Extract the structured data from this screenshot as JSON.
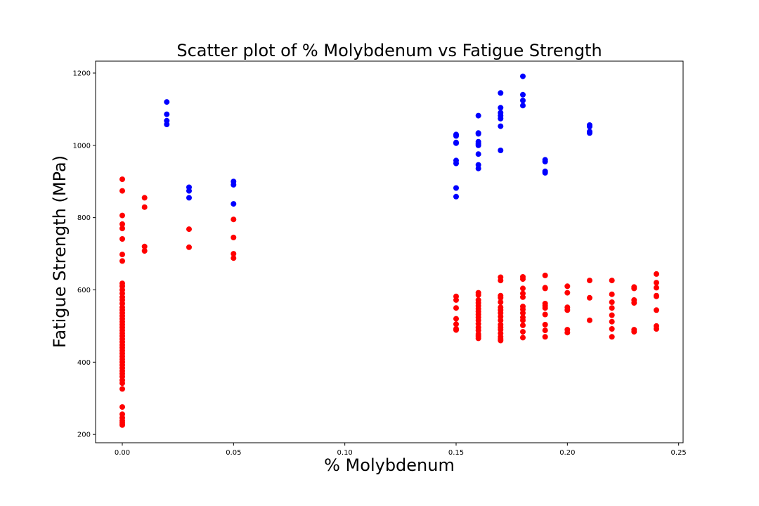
{
  "chart_data": {
    "type": "scatter",
    "title": "Scatter plot of % Molybdenum vs Fatigue Strength",
    "xlabel": "% Molybdenum",
    "ylabel": "Fatigue Strength (MPa)",
    "xlim": [
      -0.012,
      0.252
    ],
    "ylim": [
      177,
      1233
    ],
    "xticks": [
      0.0,
      0.05,
      0.1,
      0.15,
      0.2,
      0.25
    ],
    "xtick_labels": [
      "0.00",
      "0.05",
      "0.10",
      "0.15",
      "0.20",
      "0.25"
    ],
    "yticks": [
      200,
      400,
      600,
      800,
      1000,
      1200
    ],
    "ytick_labels": [
      "200",
      "400",
      "600",
      "800",
      "1000",
      "1200"
    ],
    "grid": false,
    "legend": "none",
    "series": [
      {
        "color": "#0000ff",
        "points": [
          [
            0.02,
            1120
          ],
          [
            0.02,
            1086
          ],
          [
            0.02,
            1068
          ],
          [
            0.02,
            1058
          ],
          [
            0.03,
            884
          ],
          [
            0.03,
            874
          ],
          [
            0.03,
            855
          ],
          [
            0.05,
            900
          ],
          [
            0.05,
            891
          ],
          [
            0.05,
            838
          ],
          [
            0.15,
            1030
          ],
          [
            0.15,
            1026
          ],
          [
            0.15,
            1008
          ],
          [
            0.15,
            1006
          ],
          [
            0.15,
            958
          ],
          [
            0.15,
            950
          ],
          [
            0.15,
            882
          ],
          [
            0.15,
            858
          ],
          [
            0.16,
            1082
          ],
          [
            0.16,
            1034
          ],
          [
            0.16,
            1032
          ],
          [
            0.16,
            1010
          ],
          [
            0.16,
            1004
          ],
          [
            0.16,
            1000
          ],
          [
            0.16,
            976
          ],
          [
            0.16,
            946
          ],
          [
            0.16,
            936
          ],
          [
            0.17,
            1145
          ],
          [
            0.17,
            1104
          ],
          [
            0.17,
            1090
          ],
          [
            0.17,
            1082
          ],
          [
            0.17,
            1074
          ],
          [
            0.17,
            1053
          ],
          [
            0.17,
            986
          ],
          [
            0.18,
            1191
          ],
          [
            0.18,
            1140
          ],
          [
            0.18,
            1124
          ],
          [
            0.18,
            1110
          ],
          [
            0.19,
            960
          ],
          [
            0.19,
            955
          ],
          [
            0.19,
            928
          ],
          [
            0.19,
            924
          ],
          [
            0.21,
            1056
          ],
          [
            0.21,
            1052
          ],
          [
            0.21,
            1038
          ],
          [
            0.21,
            1034
          ]
        ]
      },
      {
        "color": "#ff0000",
        "points": [
          [
            0.0,
            906
          ],
          [
            0.0,
            874
          ],
          [
            0.0,
            806
          ],
          [
            0.0,
            782
          ],
          [
            0.0,
            770
          ],
          [
            0.0,
            741
          ],
          [
            0.0,
            698
          ],
          [
            0.0,
            680
          ],
          [
            0.0,
            618
          ],
          [
            0.0,
            610
          ],
          [
            0.0,
            600
          ],
          [
            0.0,
            590
          ],
          [
            0.0,
            580
          ],
          [
            0.0,
            572
          ],
          [
            0.0,
            562
          ],
          [
            0.0,
            552
          ],
          [
            0.0,
            544
          ],
          [
            0.0,
            536
          ],
          [
            0.0,
            528
          ],
          [
            0.0,
            520
          ],
          [
            0.0,
            512
          ],
          [
            0.0,
            504
          ],
          [
            0.0,
            496
          ],
          [
            0.0,
            488
          ],
          [
            0.0,
            480
          ],
          [
            0.0,
            472
          ],
          [
            0.0,
            464
          ],
          [
            0.0,
            456
          ],
          [
            0.0,
            448
          ],
          [
            0.0,
            440
          ],
          [
            0.0,
            432
          ],
          [
            0.0,
            424
          ],
          [
            0.0,
            416
          ],
          [
            0.0,
            408
          ],
          [
            0.0,
            400
          ],
          [
            0.0,
            392
          ],
          [
            0.0,
            384
          ],
          [
            0.0,
            376
          ],
          [
            0.0,
            368
          ],
          [
            0.0,
            360
          ],
          [
            0.0,
            350
          ],
          [
            0.0,
            342
          ],
          [
            0.0,
            326
          ],
          [
            0.0,
            276
          ],
          [
            0.0,
            256
          ],
          [
            0.0,
            246
          ],
          [
            0.0,
            238
          ],
          [
            0.0,
            232
          ],
          [
            0.0,
            226
          ],
          [
            0.01,
            855
          ],
          [
            0.01,
            829
          ],
          [
            0.01,
            720
          ],
          [
            0.01,
            708
          ],
          [
            0.03,
            768
          ],
          [
            0.03,
            718
          ],
          [
            0.05,
            795
          ],
          [
            0.05,
            745
          ],
          [
            0.05,
            700
          ],
          [
            0.05,
            688
          ],
          [
            0.15,
            582
          ],
          [
            0.15,
            572
          ],
          [
            0.15,
            550
          ],
          [
            0.15,
            520
          ],
          [
            0.15,
            505
          ],
          [
            0.15,
            492
          ],
          [
            0.15,
            489
          ],
          [
            0.16,
            592
          ],
          [
            0.16,
            586
          ],
          [
            0.16,
            572
          ],
          [
            0.16,
            564
          ],
          [
            0.16,
            556
          ],
          [
            0.16,
            548
          ],
          [
            0.16,
            540
          ],
          [
            0.16,
            532
          ],
          [
            0.16,
            524
          ],
          [
            0.16,
            516
          ],
          [
            0.16,
            506
          ],
          [
            0.16,
            496
          ],
          [
            0.16,
            488
          ],
          [
            0.16,
            478
          ],
          [
            0.16,
            472
          ],
          [
            0.16,
            466
          ],
          [
            0.17,
            635
          ],
          [
            0.17,
            626
          ],
          [
            0.17,
            584
          ],
          [
            0.17,
            578
          ],
          [
            0.17,
            566
          ],
          [
            0.17,
            552
          ],
          [
            0.17,
            544
          ],
          [
            0.17,
            536
          ],
          [
            0.17,
            526
          ],
          [
            0.17,
            516
          ],
          [
            0.17,
            504
          ],
          [
            0.17,
            496
          ],
          [
            0.17,
            490
          ],
          [
            0.17,
            480
          ],
          [
            0.17,
            470
          ],
          [
            0.17,
            464
          ],
          [
            0.17,
            460
          ],
          [
            0.18,
            636
          ],
          [
            0.18,
            630
          ],
          [
            0.18,
            604
          ],
          [
            0.18,
            590
          ],
          [
            0.18,
            580
          ],
          [
            0.18,
            554
          ],
          [
            0.18,
            546
          ],
          [
            0.18,
            536
          ],
          [
            0.18,
            524
          ],
          [
            0.18,
            516
          ],
          [
            0.18,
            502
          ],
          [
            0.18,
            484
          ],
          [
            0.18,
            468
          ],
          [
            0.19,
            640
          ],
          [
            0.19,
            606
          ],
          [
            0.19,
            604
          ],
          [
            0.19,
            562
          ],
          [
            0.19,
            556
          ],
          [
            0.19,
            550
          ],
          [
            0.19,
            532
          ],
          [
            0.19,
            504
          ],
          [
            0.19,
            488
          ],
          [
            0.19,
            470
          ],
          [
            0.2,
            610
          ],
          [
            0.2,
            592
          ],
          [
            0.2,
            552
          ],
          [
            0.2,
            544
          ],
          [
            0.2,
            490
          ],
          [
            0.2,
            482
          ],
          [
            0.21,
            626
          ],
          [
            0.21,
            578
          ],
          [
            0.21,
            516
          ],
          [
            0.22,
            626
          ],
          [
            0.22,
            588
          ],
          [
            0.22,
            566
          ],
          [
            0.22,
            550
          ],
          [
            0.22,
            530
          ],
          [
            0.22,
            512
          ],
          [
            0.22,
            492
          ],
          [
            0.22,
            470
          ],
          [
            0.23,
            608
          ],
          [
            0.23,
            604
          ],
          [
            0.23,
            572
          ],
          [
            0.23,
            564
          ],
          [
            0.23,
            490
          ],
          [
            0.23,
            484
          ],
          [
            0.24,
            644
          ],
          [
            0.24,
            620
          ],
          [
            0.24,
            606
          ],
          [
            0.24,
            584
          ],
          [
            0.24,
            582
          ],
          [
            0.24,
            544
          ],
          [
            0.24,
            500
          ],
          [
            0.24,
            492
          ]
        ]
      }
    ]
  }
}
